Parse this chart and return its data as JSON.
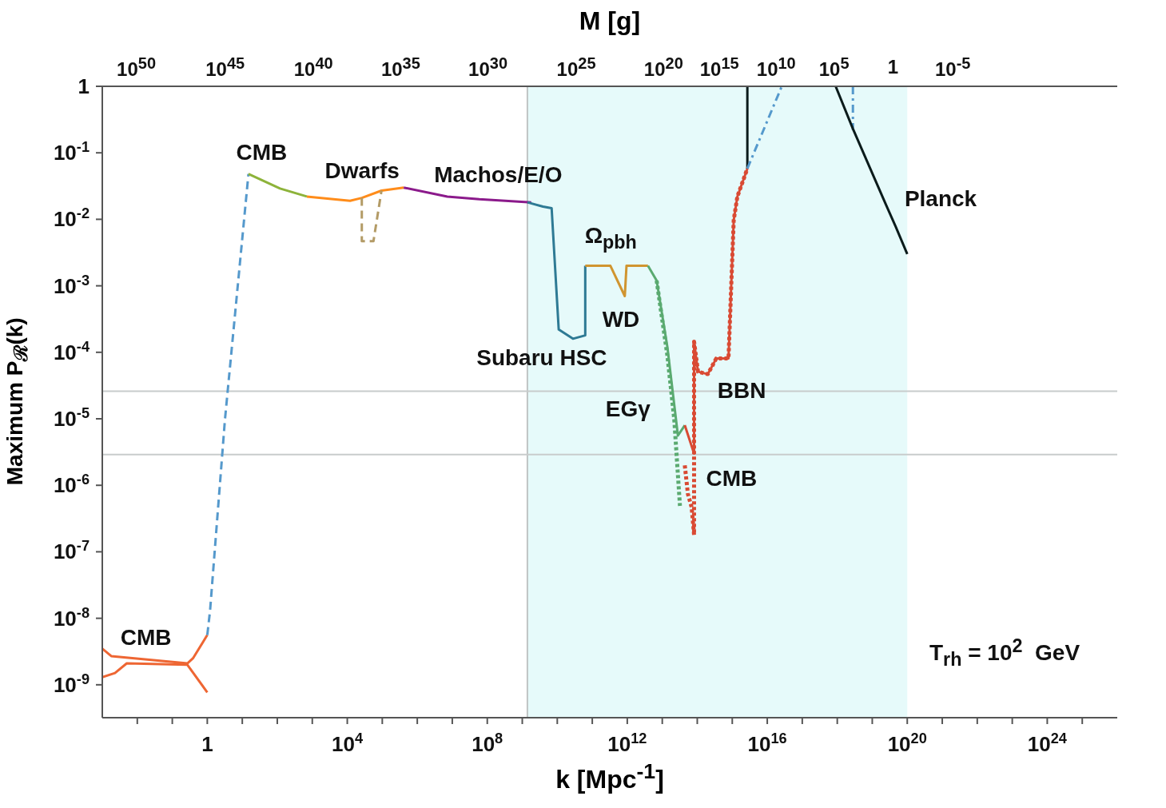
{
  "chart_data": {
    "type": "line",
    "xlabel": "k [Mpc$^{-1}$]",
    "ylabel": "Maximum P$_{ℛ}$(k)",
    "x2label": "M [g]",
    "log": "xy",
    "grid": false,
    "marker": "none",
    "xlim": [
      0.001,
      1e+26
    ],
    "xticks": [
      {
        "value": 0.01,
        "label": null
      },
      {
        "value": 0.1,
        "label": null
      },
      1,
      {
        "value": 10,
        "label": null
      },
      {
        "value": 100,
        "label": null
      },
      {
        "value": 1000,
        "label": null
      },
      {
        "value": 10000.0,
        "label": "10$^{4}$"
      },
      {
        "value": 100000.0,
        "label": null
      },
      {
        "value": 1000000.0,
        "label": null
      },
      {
        "value": 10000000.0,
        "label": null
      },
      {
        "value": 100000000.0,
        "label": "10$^{8}$"
      },
      {
        "value": 1000000000.0,
        "label": null
      },
      {
        "value": 10000000000.0,
        "label": null
      },
      {
        "value": 100000000000.0,
        "label": null
      },
      {
        "value": 1000000000000.0,
        "label": "10$^{12}$"
      },
      {
        "value": 10000000000000.0,
        "label": null
      },
      {
        "value": 100000000000000.0,
        "label": null
      },
      {
        "value": 1000000000000000.0,
        "label": null
      },
      {
        "value": 1e+16,
        "label": "10$^{16}$"
      },
      {
        "value": 1e+17,
        "label": null
      },
      {
        "value": 1e+18,
        "label": null
      },
      {
        "value": 1e+19,
        "label": null
      },
      {
        "value": 1e+20,
        "label": "10$^{20}$"
      },
      {
        "value": 1e+21,
        "label": null
      },
      {
        "value": 1e+22,
        "label": null
      },
      {
        "value": 1e+23,
        "label": null
      },
      {
        "value": 1e+24,
        "label": "10$^{24}$"
      },
      {
        "value": 1e+25,
        "label": null
      }
    ],
    "ylim": [
      3.2e-10,
      1
    ],
    "yticks": [
      {
        "value": 1e-09,
        "label": "10$^{-9}$"
      },
      {
        "value": 1e-08,
        "label": "10$^{-8}$"
      },
      {
        "value": 1e-07,
        "label": "10$^{-7}$"
      },
      {
        "value": 1e-06,
        "label": "10$^{-6}$"
      },
      {
        "value": 1e-05,
        "label": "10$^{-5}$"
      },
      {
        "value": 0.0001,
        "label": "10$^{-4}$"
      },
      {
        "value": 0.001,
        "label": "10$^{-3}$"
      },
      {
        "value": 0.01,
        "label": "10$^{-2}$"
      },
      {
        "value": 0.1,
        "label": "10$^{-1}$"
      },
      1
    ],
    "bands": [
      {
        "axis": "x",
        "from": 1400000000.0,
        "to": 1e+20,
        "color": "#e6fafa"
      }
    ],
    "ref_lines": [
      {
        "axis": "x",
        "value": 1400000000.0,
        "color": "#c0c4c4"
      },
      {
        "axis": "y",
        "value": 2.6e-05,
        "color": "#c8cccc"
      },
      {
        "axis": "y",
        "value": 2.9e-06,
        "color": "#c8cccc"
      }
    ],
    "series": [
      {
        "color": "#ee6633",
        "line_style": "solid",
        "x": [
          0.001,
          0.0018,
          0.27,
          0.39,
          1
        ],
        "values": [
          3.5e-09,
          2.7e-09,
          2.1e-09,
          2.5e-09,
          5.6e-09
        ]
      },
      {
        "color": "#ee6633",
        "line_style": "solid",
        "x": [
          0.001,
          0.0023,
          0.005,
          0.27,
          1
        ],
        "values": [
          1.3e-09,
          1.5e-09,
          2.1e-09,
          2e-09,
          7.7e-10
        ]
      },
      {
        "color": "#5599cc",
        "line_style": "dashed",
        "x": [
          1,
          1.2,
          3.2,
          15
        ],
        "values": [
          5.6e-09,
          1.3e-08,
          9.8e-06,
          0.048
        ]
      },
      {
        "color": "#8db33a",
        "line_style": "solid",
        "x": [
          15,
          120,
          700
        ],
        "values": [
          0.048,
          0.029,
          0.022
        ]
      },
      {
        "color": "#ff8c1a",
        "line_style": "solid",
        "x": [
          700,
          12000,
          26000,
          95000,
          410000
        ],
        "values": [
          0.022,
          0.019,
          0.021,
          0.027,
          0.03
        ]
      },
      {
        "color": "#b39b66",
        "line_style": "dashed",
        "x": [
          26000,
          26000,
          56000,
          95000
        ],
        "values": [
          0.021,
          0.0047,
          0.0047,
          0.027
        ]
      },
      {
        "color": "#8b1a8b",
        "line_style": "solid",
        "x": [
          410000,
          7200000.0,
          59000000.0,
          1800000000.0
        ],
        "values": [
          0.03,
          0.022,
          0.02,
          0.018
        ]
      },
      {
        "color": "#2e7a94",
        "line_style": "solid",
        "x": [
          1400000000.0,
          3900000000.0,
          6900000000.0,
          11000000000.0,
          28000000000.0,
          63000000000.0,
          63000000000.0
        ],
        "values": [
          0.018,
          0.0155,
          0.0147,
          0.00022,
          0.00016,
          0.00018,
          0.002
        ]
      },
      {
        "color": "#d09530",
        "line_style": "solid",
        "x": [
          63000000000.0,
          330000000000.0,
          850000000000.0,
          950000000000.0,
          3900000000000.0
        ],
        "values": [
          0.002,
          0.002,
          0.0007,
          0.002,
          0.002
        ]
      },
      {
        "color": "#5aaa70",
        "line_style": "dotted",
        "x": [
          6900000000000.0,
          14000000000000.0,
          22000000000000.0,
          32000000000000.0
        ],
        "values": [
          0.0012,
          8.9e-05,
          9.8e-06,
          4.9e-07
        ]
      },
      {
        "color": "#5aaa70",
        "line_style": "solid",
        "x": [
          3900000000000.0,
          6900000000000.0,
          14000000000000.0,
          28000000000000.0,
          44000000000000.0
        ],
        "values": [
          0.002,
          0.0012,
          0.00012,
          5.6e-06,
          8e-06
        ]
      },
      {
        "color": "#d94a33",
        "line_style": "dotted",
        "x": [
          44000000000000.0,
          54000000000000.0,
          69000000000000.0,
          81000000000000.0,
          81000000000000.0,
          105000000000000.0,
          200000000000000.0,
          350000000000000.0,
          780000000000000.0,
          1100000000000000.0,
          1400000000000000.0,
          2700000000000000.0
        ],
        "values": [
          2e-06,
          7.4e-07,
          4.7e-07,
          1.8e-07,
          0.000145,
          5.1e-05,
          4.7e-05,
          8.1e-05,
          8.1e-05,
          0.0097,
          0.022,
          0.058
        ]
      },
      {
        "color": "#d94a33",
        "line_style": "solid",
        "x": [
          44000000000000.0,
          81000000000000.0,
          81000000000000.0,
          105000000000000.0,
          200000000000000.0,
          350000000000000.0,
          780000000000000.0,
          1100000000000000.0,
          1400000000000000.0,
          2700000000000000.0
        ],
        "values": [
          8e-06,
          3e-06,
          0.000145,
          5.1e-05,
          4.7e-05,
          8.1e-05,
          8.1e-05,
          0.0097,
          0.022,
          0.058
        ]
      },
      {
        "color": "#0b1b1b",
        "line_style": "solid",
        "x": [
          2700000000000000.0,
          2700000000000000.0
        ],
        "values": [
          0.058,
          1
        ]
      },
      {
        "color": "#5599cc",
        "line_style": "dashdot",
        "x": [
          2700000000000000.0,
          2.6e+16
        ],
        "values": [
          0.058,
          1
        ]
      },
      {
        "color": "#5599cc",
        "line_style": "dashdot",
        "x": [
          2.8e+18,
          2.8e+18
        ],
        "values": [
          1,
          0.22
        ]
      },
      {
        "color": "#0b1b1b",
        "line_style": "solid",
        "x": [
          9e+17,
          2.8e+18,
          2.3e+19,
          4.6e+19,
          1e+20
        ],
        "values": [
          1,
          0.23,
          0.018,
          0.0079,
          0.003
        ]
      }
    ],
    "annotations": [
      "CMB",
      "CMB",
      "Dwarfs",
      "Machos/E/O",
      "Ω$_{pbh}$",
      "WD",
      "Subaru HSC",
      "EGγ",
      "BBN",
      "CMB",
      "Planck",
      "T$_{rh}$ = 10$^{2}$  GeV",
      "10$^{50}$",
      "10$^{45}$",
      "10$^{40}$",
      "10$^{35}$",
      "10$^{30}$",
      "10$^{25}$",
      "10$^{20}$",
      "10$^{15}$",
      "10$^{10}$",
      "10$^{5}$",
      "1",
      "10$^{-5}$"
    ]
  }
}
